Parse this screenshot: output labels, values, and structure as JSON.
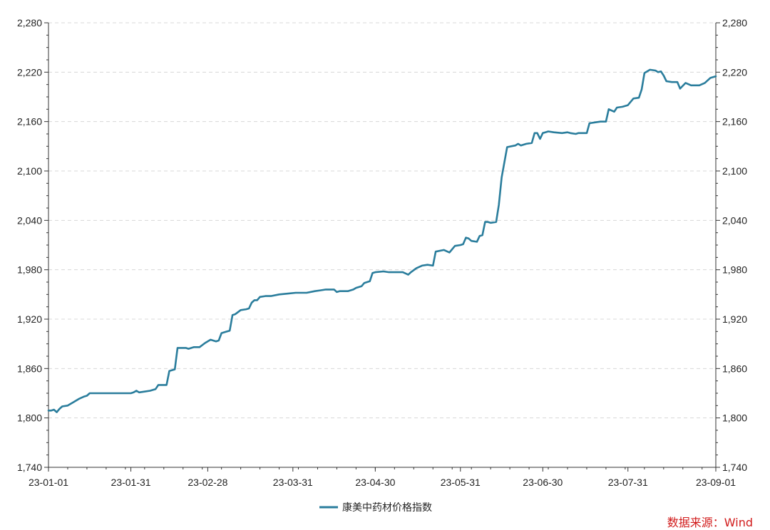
{
  "chart_data": {
    "type": "line",
    "title": "",
    "xlabel": "",
    "ylabel": "",
    "ylim": [
      1740,
      2280
    ],
    "yticks": [
      1740,
      1800,
      1860,
      1920,
      1980,
      2040,
      2100,
      2160,
      2220,
      2280
    ],
    "ytick_labels": [
      "1,740",
      "1,800",
      "1,860",
      "1,920",
      "1,980",
      "2,040",
      "2,100",
      "2,160",
      "2,220",
      "2,280"
    ],
    "xlim": [
      "2023-01-01",
      "2023-09-01"
    ],
    "xticks": [
      "2023-01-01",
      "2023-01-31",
      "2023-02-28",
      "2023-03-31",
      "2023-04-30",
      "2023-05-31",
      "2023-06-30",
      "2023-07-31",
      "2023-09-01"
    ],
    "xtick_labels": [
      "23-01-01",
      "23-01-31",
      "23-02-28",
      "23-03-31",
      "23-04-30",
      "23-05-31",
      "23-06-30",
      "23-07-31",
      "23-09-01"
    ],
    "grid": "horizontal dashed",
    "legend_position": "bottom-center",
    "dual_y_axis": true,
    "series": [
      {
        "name": "康美中药材价格指数",
        "color": "#2a7d9c",
        "points": [
          [
            "2023-01-01",
            1809
          ],
          [
            "2023-01-02",
            1809
          ],
          [
            "2023-01-03",
            1810
          ],
          [
            "2023-01-04",
            1807
          ],
          [
            "2023-01-05",
            1811
          ],
          [
            "2023-01-06",
            1814
          ],
          [
            "2023-01-08",
            1815
          ],
          [
            "2023-01-10",
            1819
          ],
          [
            "2023-01-12",
            1823
          ],
          [
            "2023-01-14",
            1826
          ],
          [
            "2023-01-15",
            1827
          ],
          [
            "2023-01-16",
            1830
          ],
          [
            "2023-01-20",
            1830
          ],
          [
            "2023-01-25",
            1830
          ],
          [
            "2023-01-31",
            1830
          ],
          [
            "2023-02-01",
            1831
          ],
          [
            "2023-02-02",
            1833
          ],
          [
            "2023-02-03",
            1831
          ],
          [
            "2023-02-05",
            1832
          ],
          [
            "2023-02-07",
            1833
          ],
          [
            "2023-02-09",
            1835
          ],
          [
            "2023-02-10",
            1840
          ],
          [
            "2023-02-13",
            1840
          ],
          [
            "2023-02-14",
            1857
          ],
          [
            "2023-02-16",
            1859
          ],
          [
            "2023-02-17",
            1885
          ],
          [
            "2023-02-20",
            1885
          ],
          [
            "2023-02-21",
            1884
          ],
          [
            "2023-02-23",
            1886
          ],
          [
            "2023-02-25",
            1886
          ],
          [
            "2023-02-27",
            1891
          ],
          [
            "2023-03-01",
            1895
          ],
          [
            "2023-03-03",
            1893
          ],
          [
            "2023-03-04",
            1894
          ],
          [
            "2023-03-05",
            1903
          ],
          [
            "2023-03-07",
            1905
          ],
          [
            "2023-03-08",
            1906
          ],
          [
            "2023-03-09",
            1925
          ],
          [
            "2023-03-10",
            1926
          ],
          [
            "2023-03-12",
            1931
          ],
          [
            "2023-03-14",
            1932
          ],
          [
            "2023-03-15",
            1933
          ],
          [
            "2023-03-16",
            1940
          ],
          [
            "2023-03-17",
            1943
          ],
          [
            "2023-03-18",
            1943
          ],
          [
            "2023-03-19",
            1947
          ],
          [
            "2023-03-21",
            1948
          ],
          [
            "2023-03-23",
            1948
          ],
          [
            "2023-03-26",
            1950
          ],
          [
            "2023-03-29",
            1951
          ],
          [
            "2023-04-01",
            1952
          ],
          [
            "2023-04-05",
            1952
          ],
          [
            "2023-04-08",
            1954
          ],
          [
            "2023-04-10",
            1955
          ],
          [
            "2023-04-12",
            1956
          ],
          [
            "2023-04-15",
            1956
          ],
          [
            "2023-04-16",
            1953
          ],
          [
            "2023-04-17",
            1954
          ],
          [
            "2023-04-20",
            1954
          ],
          [
            "2023-04-22",
            1956
          ],
          [
            "2023-04-23",
            1958
          ],
          [
            "2023-04-25",
            1960
          ],
          [
            "2023-04-26",
            1964
          ],
          [
            "2023-04-28",
            1966
          ],
          [
            "2023-04-29",
            1976
          ],
          [
            "2023-04-30",
            1977
          ],
          [
            "2023-05-03",
            1978
          ],
          [
            "2023-05-05",
            1977
          ],
          [
            "2023-05-10",
            1977
          ],
          [
            "2023-05-12",
            1974
          ],
          [
            "2023-05-13",
            1977
          ],
          [
            "2023-05-15",
            1982
          ],
          [
            "2023-05-17",
            1985
          ],
          [
            "2023-05-19",
            1986
          ],
          [
            "2023-05-21",
            1985
          ],
          [
            "2023-05-22",
            2002
          ],
          [
            "2023-05-25",
            2004
          ],
          [
            "2023-05-27",
            2001
          ],
          [
            "2023-05-29",
            2009
          ],
          [
            "2023-05-31",
            2010
          ],
          [
            "2023-06-01",
            2011
          ],
          [
            "2023-06-02",
            2019
          ],
          [
            "2023-06-03",
            2018
          ],
          [
            "2023-06-04",
            2015
          ],
          [
            "2023-06-06",
            2014
          ],
          [
            "2023-06-07",
            2021
          ],
          [
            "2023-06-08",
            2022
          ],
          [
            "2023-06-09",
            2038
          ],
          [
            "2023-06-10",
            2038
          ],
          [
            "2023-06-11",
            2037
          ],
          [
            "2023-06-13",
            2038
          ],
          [
            "2023-06-14",
            2059
          ],
          [
            "2023-06-15",
            2092
          ],
          [
            "2023-06-17",
            2129
          ],
          [
            "2023-06-20",
            2131
          ],
          [
            "2023-06-21",
            2133
          ],
          [
            "2023-06-22",
            2131
          ],
          [
            "2023-06-24",
            2133
          ],
          [
            "2023-06-26",
            2134
          ],
          [
            "2023-06-27",
            2146
          ],
          [
            "2023-06-28",
            2146
          ],
          [
            "2023-06-29",
            2139
          ],
          [
            "2023-06-30",
            2146
          ],
          [
            "2023-07-02",
            2148
          ],
          [
            "2023-07-04",
            2147
          ],
          [
            "2023-07-07",
            2146
          ],
          [
            "2023-07-09",
            2147
          ],
          [
            "2023-07-10",
            2146
          ],
          [
            "2023-07-12",
            2145
          ],
          [
            "2023-07-13",
            2146
          ],
          [
            "2023-07-16",
            2146
          ],
          [
            "2023-07-17",
            2158
          ],
          [
            "2023-07-19",
            2159
          ],
          [
            "2023-07-21",
            2160
          ],
          [
            "2023-07-23",
            2160
          ],
          [
            "2023-07-24",
            2175
          ],
          [
            "2023-07-26",
            2172
          ],
          [
            "2023-07-27",
            2177
          ],
          [
            "2023-07-29",
            2178
          ],
          [
            "2023-07-31",
            2180
          ],
          [
            "2023-08-02",
            2188
          ],
          [
            "2023-08-04",
            2189
          ],
          [
            "2023-08-05",
            2199
          ],
          [
            "2023-08-06",
            2219
          ],
          [
            "2023-08-08",
            2223
          ],
          [
            "2023-08-10",
            2222
          ],
          [
            "2023-08-11",
            2220
          ],
          [
            "2023-08-12",
            2221
          ],
          [
            "2023-08-13",
            2216
          ],
          [
            "2023-08-14",
            2209
          ],
          [
            "2023-08-16",
            2208
          ],
          [
            "2023-08-18",
            2208
          ],
          [
            "2023-08-19",
            2200
          ],
          [
            "2023-08-21",
            2207
          ],
          [
            "2023-08-23",
            2204
          ],
          [
            "2023-08-26",
            2204
          ],
          [
            "2023-08-28",
            2207
          ],
          [
            "2023-08-30",
            2213
          ],
          [
            "2023-09-01",
            2215
          ]
        ]
      }
    ]
  },
  "source_note": "数据来源：Wind"
}
